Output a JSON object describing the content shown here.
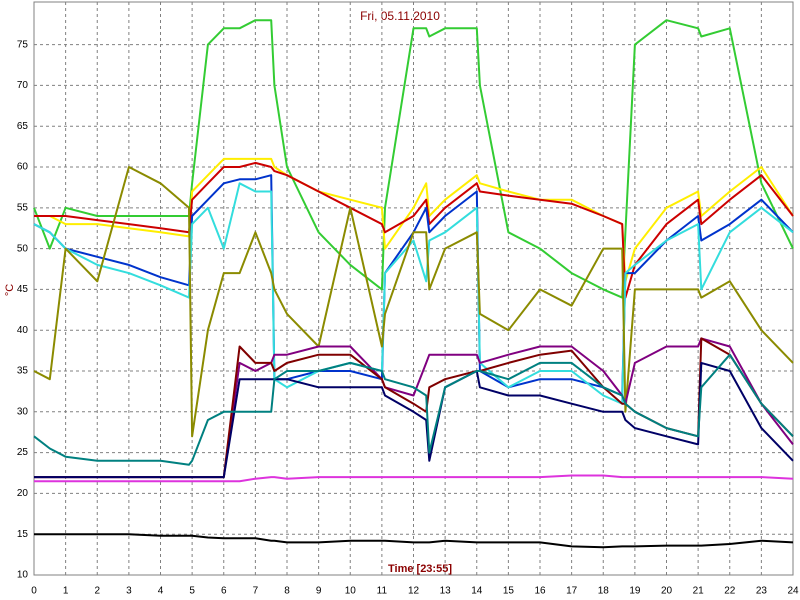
{
  "chart_data": {
    "type": "line",
    "title": "Fri, 05.11.2010",
    "x_label": "Time [23:55]",
    "y_label": "°C",
    "grid": true,
    "xlim": [
      0,
      24
    ],
    "xticks": [
      0,
      1,
      2,
      3,
      4,
      5,
      6,
      7,
      8,
      9,
      10,
      11,
      12,
      13,
      14,
      15,
      16,
      17,
      18,
      19,
      20,
      21,
      22,
      23,
      24
    ],
    "ylim": [
      10,
      79
    ],
    "yticks": [
      10,
      15,
      20,
      25,
      30,
      35,
      40,
      45,
      50,
      55,
      60,
      65,
      70,
      75
    ],
    "x": [
      0,
      0.5,
      1,
      2,
      3,
      4,
      4.9,
      5,
      5.5,
      6,
      6.5,
      7,
      7.5,
      7.6,
      8,
      9,
      10,
      11,
      11.1,
      12,
      12.4,
      12.5,
      13,
      14,
      14.1,
      15,
      16,
      17,
      18,
      18.6,
      18.7,
      19,
      20,
      21,
      21.1,
      22,
      23,
      24
    ],
    "series": [
      {
        "name": "green",
        "color": "#33cc33",
        "values": [
          55,
          50,
          55,
          54,
          54,
          54,
          54,
          58,
          75,
          77,
          77,
          78,
          78,
          70,
          60,
          52,
          48,
          45,
          55,
          77,
          77,
          76,
          77,
          77,
          70,
          52,
          50,
          47,
          45,
          44,
          52,
          75,
          78,
          77,
          76,
          77,
          58,
          50
        ]
      },
      {
        "name": "yellow",
        "color": "#ffee00",
        "values": [
          54,
          54,
          53,
          53,
          52.5,
          52,
          51.5,
          57,
          59,
          61,
          61,
          61,
          61,
          60,
          59,
          57,
          56,
          55,
          50,
          55,
          58,
          54,
          56,
          59,
          58,
          57,
          56,
          56,
          54,
          53,
          46,
          50,
          55,
          57,
          54,
          57,
          60,
          54
        ]
      },
      {
        "name": "red",
        "color": "#cc0000",
        "values": [
          54,
          54,
          54,
          53.5,
          53,
          52.5,
          52,
          56,
          58,
          60,
          60,
          60.5,
          60,
          59.5,
          59,
          57,
          55,
          53,
          52,
          54,
          56,
          53,
          55,
          58,
          57,
          56.5,
          56,
          55.5,
          54,
          53,
          44,
          48,
          53,
          56,
          53,
          56,
          59,
          54
        ]
      },
      {
        "name": "blue",
        "color": "#0033cc",
        "values": [
          53,
          52,
          50,
          49,
          48,
          46.5,
          45.5,
          54,
          56,
          58,
          58.5,
          58.5,
          59,
          34,
          34,
          35,
          35,
          34,
          47,
          52,
          55,
          52,
          54,
          57,
          35,
          33,
          34,
          34,
          33,
          32,
          47,
          47,
          51,
          54,
          51,
          53,
          56,
          52
        ]
      },
      {
        "name": "cyan",
        "color": "#33dddd",
        "values": [
          53,
          52,
          50,
          48,
          47,
          45.5,
          44,
          53,
          55,
          50,
          58,
          57,
          57,
          34,
          33,
          35,
          36,
          35,
          47,
          51,
          46,
          51,
          52,
          55,
          36,
          33,
          35,
          35,
          32,
          31,
          47,
          48,
          51,
          53,
          45,
          52,
          55,
          52
        ]
      },
      {
        "name": "olive",
        "color": "#8b8b00",
        "values": [
          35,
          34,
          50,
          46,
          60,
          58,
          55,
          27,
          40,
          47,
          47,
          52,
          47,
          45,
          42,
          38,
          55,
          38,
          42,
          52,
          52,
          45,
          50,
          52,
          42,
          40,
          45,
          43,
          50,
          50,
          30,
          45,
          45,
          45,
          44,
          46,
          40,
          36
        ]
      },
      {
        "name": "purple",
        "color": "#800080",
        "values": [
          22,
          22,
          22,
          22,
          22,
          22,
          22,
          22,
          22,
          22,
          36,
          35,
          36,
          37,
          37,
          38,
          38,
          34,
          33,
          32,
          36,
          37,
          37,
          37,
          36,
          37,
          38,
          38,
          35,
          32,
          31,
          36,
          38,
          38,
          39,
          38,
          31,
          26
        ]
      },
      {
        "name": "darkred",
        "color": "#800000",
        "values": [
          22,
          22,
          22,
          22,
          22,
          22,
          22,
          22,
          22,
          22,
          38,
          36,
          36,
          35,
          36,
          37,
          37,
          34,
          33,
          31,
          30,
          33,
          34,
          35,
          35,
          36,
          37,
          37.5,
          33,
          31,
          31,
          30,
          28,
          27,
          39,
          37,
          31,
          27
        ]
      },
      {
        "name": "navy",
        "color": "#000066",
        "values": [
          22,
          22,
          22,
          22,
          22,
          22,
          22,
          22,
          22,
          22,
          34,
          34,
          34,
          34,
          34,
          33,
          33,
          33,
          32,
          30,
          29,
          24,
          33,
          35,
          33,
          32,
          32,
          31,
          30,
          30,
          29,
          28,
          27,
          26,
          36,
          35,
          28,
          24
        ]
      },
      {
        "name": "teal",
        "color": "#008080",
        "values": [
          27,
          25.5,
          24.5,
          24,
          24,
          24,
          23.5,
          24,
          29,
          30,
          30,
          30,
          30,
          34,
          35,
          35,
          36,
          35,
          34,
          33,
          32,
          25,
          33,
          35,
          35,
          34,
          36,
          36,
          33,
          32,
          31,
          30,
          28,
          27,
          33,
          37,
          31,
          27
        ]
      },
      {
        "name": "magenta",
        "color": "#dd33dd",
        "values": [
          21.5,
          21.5,
          21.5,
          21.5,
          21.5,
          21.5,
          21.5,
          21.5,
          21.5,
          21.5,
          21.5,
          21.8,
          22,
          22,
          21.8,
          22,
          22,
          22,
          22,
          22,
          22,
          22,
          22,
          22,
          22,
          22,
          22,
          22.2,
          22.2,
          22,
          22,
          22,
          22,
          22,
          22,
          22,
          22,
          21.8
        ]
      },
      {
        "name": "black",
        "color": "#000000",
        "values": [
          15,
          15,
          15,
          15,
          15,
          14.8,
          14.8,
          14.8,
          14.6,
          14.5,
          14.5,
          14.5,
          14.2,
          14.2,
          14,
          14,
          14.2,
          14.2,
          14.2,
          14,
          14,
          14,
          14.2,
          14,
          14,
          14,
          14,
          13.5,
          13.4,
          13.5,
          13.5,
          13.5,
          13.6,
          13.6,
          13.6,
          13.8,
          14.2,
          14
        ]
      }
    ]
  }
}
